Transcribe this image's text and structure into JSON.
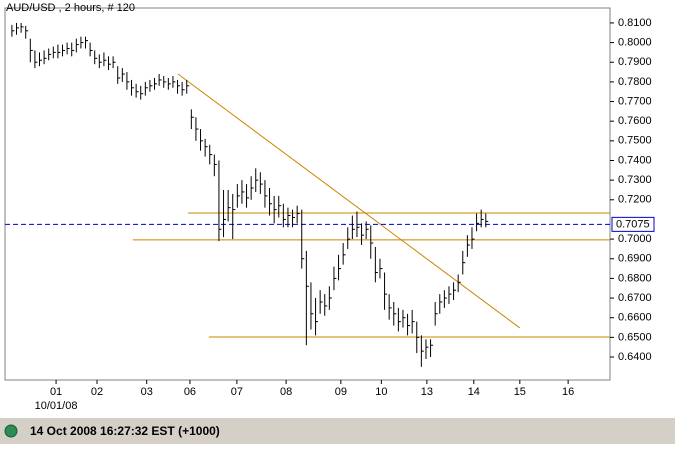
{
  "chart_data": {
    "type": "ohlc",
    "title": "AUD/USD , 2 hours, # 120",
    "color": "#000000",
    "xlim": [
      -1.5,
      130
    ],
    "ylim": [
      0.6283,
      0.8176
    ],
    "xticks": [
      {
        "value": 9.6,
        "label": "01"
      },
      {
        "value": 18.5,
        "label": "02"
      },
      {
        "value": 29.3,
        "label": "03"
      },
      {
        "value": 38.7,
        "label": "06"
      },
      {
        "value": 48.9,
        "label": "07"
      },
      {
        "value": 59.6,
        "label": "08"
      },
      {
        "value": 71.5,
        "label": "09"
      },
      {
        "value": 80.3,
        "label": "10"
      },
      {
        "value": 90.2,
        "label": "13"
      },
      {
        "value": 100.4,
        "label": "14"
      },
      {
        "value": 110.4,
        "label": "15"
      },
      {
        "value": 120.9,
        "label": "16"
      }
    ],
    "x_sublabel": "10/01/08",
    "yticks": [
      {
        "value": 0.81,
        "label": "0.8100"
      },
      {
        "value": 0.8,
        "label": "0.8000"
      },
      {
        "value": 0.79,
        "label": "0.7900"
      },
      {
        "value": 0.78,
        "label": "0.7800"
      },
      {
        "value": 0.77,
        "label": "0.7700"
      },
      {
        "value": 0.76,
        "label": "0.7600"
      },
      {
        "value": 0.75,
        "label": "0.7500"
      },
      {
        "value": 0.74,
        "label": "0.7400"
      },
      {
        "value": 0.73,
        "label": "0.7300"
      },
      {
        "value": 0.72,
        "label": "0.7200"
      },
      {
        "value": 0.7,
        "label": "0.7000"
      },
      {
        "value": 0.69,
        "label": "0.6900"
      },
      {
        "value": 0.68,
        "label": "0.6800"
      },
      {
        "value": 0.67,
        "label": "0.6700"
      },
      {
        "value": 0.66,
        "label": "0.6600"
      },
      {
        "value": 0.65,
        "label": "0.6500"
      },
      {
        "value": 0.64,
        "label": "0.6400"
      }
    ],
    "high": [
      0.809,
      0.81,
      0.81,
      0.8085,
      0.802,
      0.796,
      0.795,
      0.796,
      0.797,
      0.798,
      0.799,
      0.799,
      0.8,
      0.8,
      0.802,
      0.803,
      0.803,
      0.8,
      0.796,
      0.794,
      0.795,
      0.793,
      0.793,
      0.788,
      0.787,
      0.785,
      0.781,
      0.779,
      0.778,
      0.78,
      0.781,
      0.782,
      0.784,
      0.783,
      0.782,
      0.783,
      0.781,
      0.78,
      0.781,
      0.766,
      0.762,
      0.756,
      0.751,
      0.748,
      0.743,
      0.74,
      0.725,
      0.725,
      0.723,
      0.728,
      0.73,
      0.728,
      0.732,
      0.736,
      0.734,
      0.73,
      0.726,
      0.722,
      0.722,
      0.718,
      0.716,
      0.715,
      0.717,
      0.715,
      0.694,
      0.678,
      0.67,
      0.674,
      0.672,
      0.676,
      0.686,
      0.692,
      0.698,
      0.706,
      0.712,
      0.714,
      0.708,
      0.709,
      0.707,
      0.696,
      0.69,
      0.683,
      0.672,
      0.668,
      0.665,
      0.664,
      0.662,
      0.664,
      0.658,
      0.651,
      0.649,
      0.649,
      0.668,
      0.672,
      0.674,
      0.676,
      0.678,
      0.682,
      0.694,
      0.702,
      0.706,
      0.713,
      0.715,
      0.713
    ],
    "low": [
      0.803,
      0.804,
      0.805,
      0.802,
      0.79,
      0.787,
      0.788,
      0.789,
      0.791,
      0.792,
      0.792,
      0.793,
      0.794,
      0.793,
      0.795,
      0.797,
      0.797,
      0.793,
      0.789,
      0.787,
      0.788,
      0.786,
      0.787,
      0.779,
      0.78,
      0.776,
      0.773,
      0.772,
      0.771,
      0.773,
      0.775,
      0.776,
      0.778,
      0.777,
      0.776,
      0.777,
      0.774,
      0.773,
      0.774,
      0.756,
      0.75,
      0.745,
      0.742,
      0.738,
      0.732,
      0.699,
      0.701,
      0.709,
      0.7,
      0.716,
      0.718,
      0.716,
      0.72,
      0.724,
      0.723,
      0.716,
      0.712,
      0.708,
      0.711,
      0.706,
      0.706,
      0.706,
      0.708,
      0.685,
      0.646,
      0.654,
      0.651,
      0.662,
      0.661,
      0.664,
      0.674,
      0.679,
      0.687,
      0.695,
      0.7,
      0.701,
      0.697,
      0.7,
      0.69,
      0.678,
      0.68,
      0.664,
      0.659,
      0.656,
      0.653,
      0.655,
      0.651,
      0.652,
      0.642,
      0.635,
      0.639,
      0.64,
      0.656,
      0.662,
      0.665,
      0.667,
      0.669,
      0.673,
      0.682,
      0.691,
      0.695,
      0.704,
      0.706,
      0.706
    ],
    "close": [
      0.806,
      0.8075,
      0.808,
      0.806,
      0.796,
      0.79,
      0.791,
      0.792,
      0.794,
      0.795,
      0.795,
      0.796,
      0.797,
      0.796,
      0.799,
      0.8,
      0.801,
      0.796,
      0.792,
      0.79,
      0.791,
      0.789,
      0.79,
      0.782,
      0.784,
      0.78,
      0.777,
      0.775,
      0.774,
      0.777,
      0.778,
      0.779,
      0.781,
      0.78,
      0.779,
      0.78,
      0.778,
      0.776,
      0.778,
      0.762,
      0.756,
      0.75,
      0.747,
      0.743,
      0.738,
      0.705,
      0.71,
      0.716,
      0.715,
      0.722,
      0.724,
      0.721,
      0.726,
      0.73,
      0.728,
      0.722,
      0.718,
      0.715,
      0.717,
      0.71,
      0.712,
      0.711,
      0.713,
      0.69,
      0.676,
      0.662,
      0.658,
      0.668,
      0.666,
      0.67,
      0.68,
      0.685,
      0.692,
      0.7,
      0.705,
      0.706,
      0.702,
      0.705,
      0.698,
      0.683,
      0.685,
      0.672,
      0.665,
      0.662,
      0.658,
      0.66,
      0.656,
      0.658,
      0.65,
      0.643,
      0.645,
      0.646,
      0.662,
      0.668,
      0.67,
      0.672,
      0.674,
      0.678,
      0.688,
      0.697,
      0.7,
      0.708,
      0.71,
      0.709
    ],
    "current_level": {
      "value": 0.7075,
      "label": "0.7075",
      "color": "#0000cc"
    },
    "support_lines": [
      {
        "x": 38.3,
        "value": 0.7133
      },
      {
        "x": 26.3,
        "value": 0.6996
      },
      {
        "x": 42.8,
        "value": 0.6502
      }
    ],
    "trendline": {
      "x": [
        36.1,
        110.4
      ],
      "y": [
        0.784,
        0.6548
      ]
    },
    "line_color": "#cc8400",
    "status": "14 Oct 2008 16:27:32 EST (+1000)"
  }
}
